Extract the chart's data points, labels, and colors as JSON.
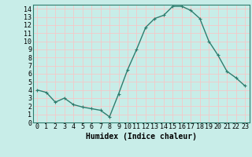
{
  "x": [
    0,
    1,
    2,
    3,
    4,
    5,
    6,
    7,
    8,
    9,
    10,
    11,
    12,
    13,
    14,
    15,
    16,
    17,
    18,
    19,
    20,
    21,
    22,
    23
  ],
  "y": [
    4.0,
    3.7,
    2.5,
    3.0,
    2.2,
    1.9,
    1.7,
    1.5,
    0.7,
    3.5,
    6.5,
    9.0,
    11.7,
    12.8,
    13.2,
    14.3,
    14.3,
    13.8,
    12.8,
    10.0,
    8.3,
    6.3,
    5.5,
    4.5
  ],
  "line_color": "#2e7d6e",
  "marker": "+",
  "marker_size": 3,
  "bg_color": "#c8ede8",
  "grid_color": "#f5c8c8",
  "xlabel": "Humidex (Indice chaleur)",
  "ylim": [
    0,
    14.5
  ],
  "xlim": [
    -0.5,
    23.5
  ],
  "yticks": [
    0,
    1,
    2,
    3,
    4,
    5,
    6,
    7,
    8,
    9,
    10,
    11,
    12,
    13,
    14
  ],
  "xticks": [
    0,
    1,
    2,
    3,
    4,
    5,
    6,
    7,
    8,
    9,
    10,
    11,
    12,
    13,
    14,
    15,
    16,
    17,
    18,
    19,
    20,
    21,
    22,
    23
  ],
  "xlabel_fontsize": 7,
  "tick_fontsize": 6,
  "line_width": 1.0
}
